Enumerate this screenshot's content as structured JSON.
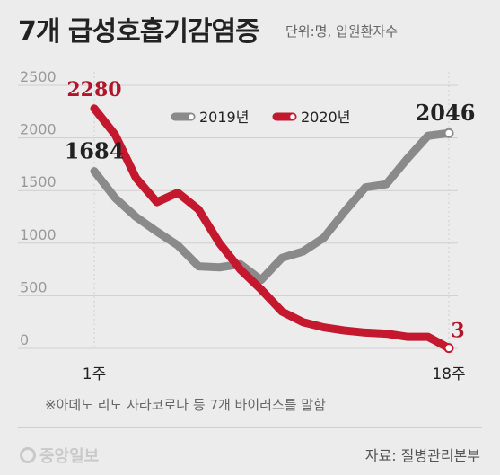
{
  "title": "7개 급성호흡기감염증",
  "subtitle": "단위:명, 입원환자수",
  "note": "※아데노 리노 사라코로나 등 7개 바이러스를 말함",
  "source": "자료: 질병관리본부",
  "brand": "중앙일보",
  "chart_data": {
    "type": "line",
    "x": [
      1,
      2,
      3,
      4,
      5,
      6,
      7,
      8,
      9,
      10,
      11,
      12,
      13,
      14,
      15,
      16,
      17,
      18
    ],
    "x_tick_labels": [
      "1주",
      "18주"
    ],
    "ylim": [
      0,
      2500
    ],
    "y_ticks": [
      0,
      500,
      1000,
      1500,
      2000,
      2500
    ],
    "grid": true,
    "legend_position": "top-center",
    "series": [
      {
        "name": "2019년",
        "color": "#8a8a8a",
        "values": [
          1684,
          1430,
          1250,
          1110,
          980,
          780,
          770,
          800,
          650,
          860,
          920,
          1050,
          1300,
          1530,
          1560,
          1800,
          2020,
          2046
        ],
        "labels": [
          {
            "index": 0,
            "text": "1684"
          },
          {
            "index": 17,
            "text": "2046"
          }
        ]
      },
      {
        "name": "2020년",
        "color": "#c4182e",
        "values": [
          2280,
          2030,
          1620,
          1390,
          1480,
          1320,
          1000,
          750,
          560,
          350,
          250,
          200,
          170,
          150,
          140,
          110,
          110,
          3
        ],
        "labels": [
          {
            "index": 0,
            "text": "2280"
          },
          {
            "index": 17,
            "text": "3"
          }
        ]
      }
    ]
  }
}
